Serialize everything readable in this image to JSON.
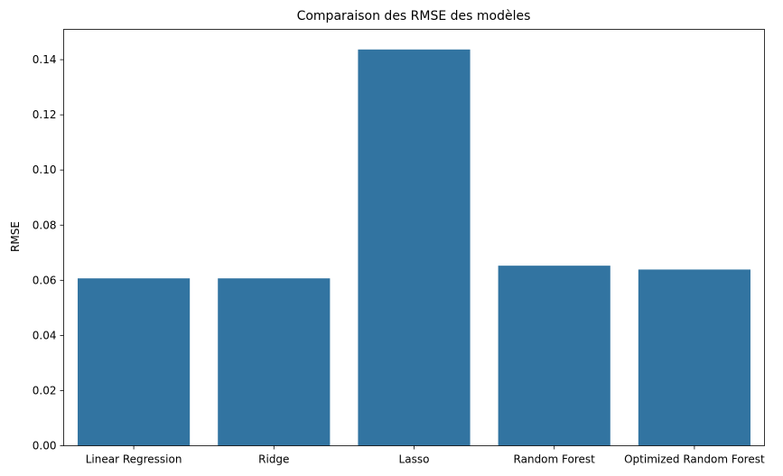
{
  "chart_data": {
    "type": "bar",
    "title": "Comparaison des RMSE des modèles",
    "xlabel": "",
    "ylabel": "RMSE",
    "categories": [
      "Linear Regression",
      "Ridge",
      "Lasso",
      "Random Forest",
      "Optimized Random Forest"
    ],
    "values": [
      0.0607,
      0.0607,
      0.1437,
      0.0653,
      0.0639
    ],
    "ylim": [
      0,
      0.151
    ],
    "yticks": [
      0.0,
      0.02,
      0.04,
      0.06,
      0.08,
      0.1,
      0.12,
      0.14
    ],
    "ytick_labels": [
      "0.00",
      "0.02",
      "0.04",
      "0.06",
      "0.08",
      "0.10",
      "0.12",
      "0.14"
    ],
    "bar_color": "#3274a1",
    "grid": false,
    "legend": "none"
  }
}
